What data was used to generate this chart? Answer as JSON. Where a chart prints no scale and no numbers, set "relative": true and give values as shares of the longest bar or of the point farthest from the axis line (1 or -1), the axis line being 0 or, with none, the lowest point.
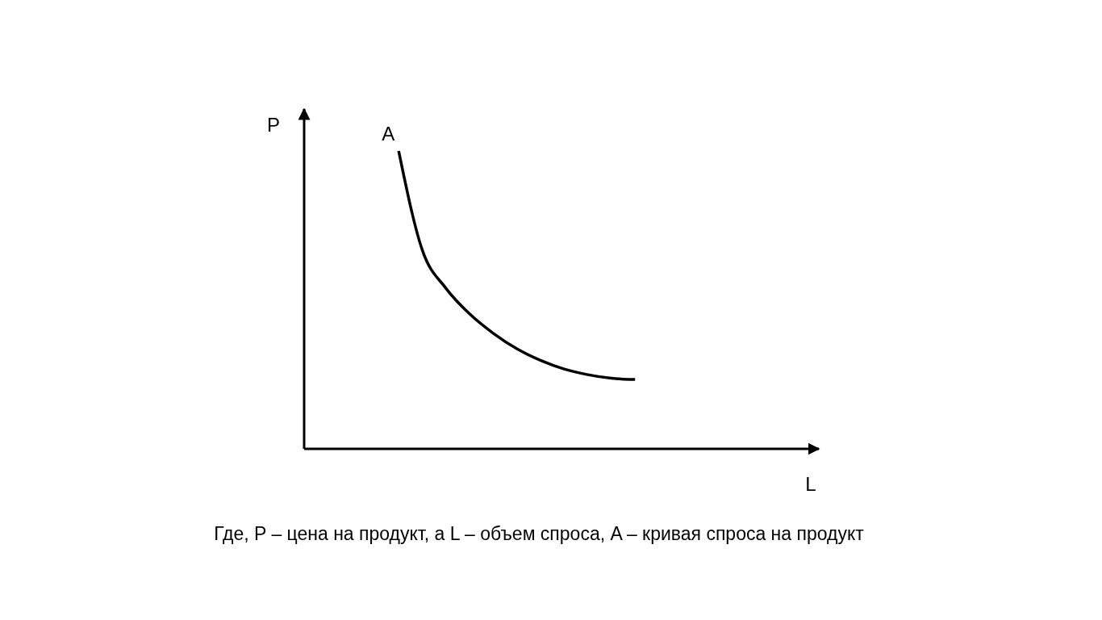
{
  "chart_data": {
    "type": "line",
    "relative": true,
    "xlabel": "L",
    "ylabel": "P",
    "categories": [
      null,
      null,
      null,
      null,
      null,
      null,
      null,
      null,
      null,
      null,
      null,
      null,
      null,
      null,
      null,
      null,
      null,
      null,
      null,
      null,
      null,
      null
    ],
    "series": [
      {
        "color": "#000000",
        "values": [
          null,
          null,
          null,
          null,
          1.0,
          0.667,
          0.539,
          0.453,
          0.388,
          0.336,
          0.297,
          0.268,
          0.249,
          0.237,
          0.233,
          null,
          null,
          null,
          null,
          null,
          null,
          null
        ]
      }
    ],
    "annotations": [
      "A",
      "Где, P – цена на продукт, а L – объем спроса, A – кривая спроса на продукт"
    ],
    "marker": "none",
    "line_style": "solid"
  }
}
